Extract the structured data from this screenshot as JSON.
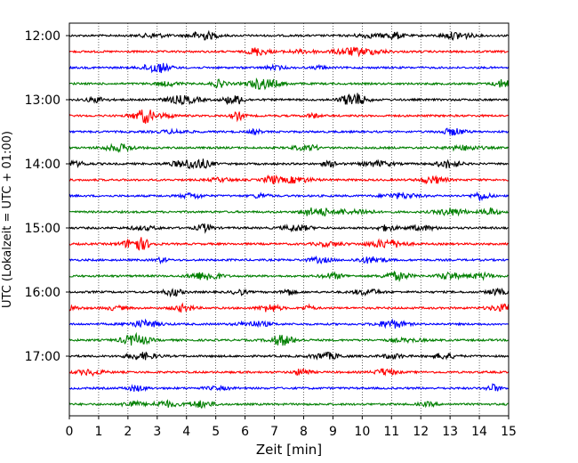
{
  "chart_data": {
    "type": "line",
    "title": "",
    "xlabel": "Zeit  [min]",
    "ylabel": "UTC (Lokalzeit = UTC + 01:00)",
    "xlim": [
      0,
      15
    ],
    "x_ticks": [
      "0",
      "1",
      "2",
      "3",
      "4",
      "5",
      "6",
      "7",
      "8",
      "9",
      "10",
      "11",
      "12",
      "13",
      "14",
      "15"
    ],
    "y_ticks": [
      "12:00",
      "13:00",
      "14:00",
      "15:00",
      "16:00",
      "17:00"
    ],
    "grid": "vertical dotted at each minute",
    "trace_interval_minutes": 15,
    "start_time": "12:00",
    "trace_count": 24,
    "trace_colors": [
      "#000000",
      "#ff0000",
      "#0000ff",
      "#007f00"
    ]
  }
}
